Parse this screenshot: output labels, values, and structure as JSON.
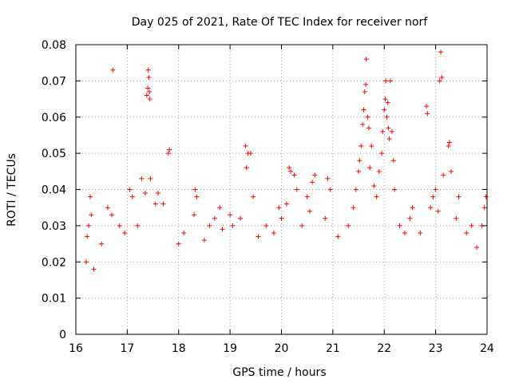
{
  "chart_data": {
    "type": "scatter",
    "title": "Day 025 of 2021, Rate Of TEC Index for receiver norf",
    "xlabel": "GPS time / hours",
    "ylabel": "ROTI / TECUs",
    "xlim": [
      16,
      24
    ],
    "ylim": [
      0,
      0.08
    ],
    "x_ticks": [
      16,
      17,
      18,
      19,
      20,
      21,
      22,
      23,
      24
    ],
    "y_ticks": [
      0,
      0.01,
      0.02,
      0.03,
      0.04,
      0.05,
      0.06,
      0.07,
      0.08
    ],
    "x_tick_labels": [
      "16",
      "17",
      "18",
      "19",
      "20",
      "21",
      "22",
      "23",
      "24"
    ],
    "y_tick_labels": [
      "0",
      "0.01",
      "0.02",
      "0.03",
      "0.04",
      "0.05",
      "0.06",
      "0.07",
      "0.08"
    ],
    "grid": true,
    "marker": "+",
    "color": "#ff0000",
    "series": [
      {
        "name": "ROTI",
        "points": [
          [
            16.2,
            0.02
          ],
          [
            16.22,
            0.027
          ],
          [
            16.25,
            0.03
          ],
          [
            16.28,
            0.038
          ],
          [
            16.3,
            0.033
          ],
          [
            16.35,
            0.018
          ],
          [
            16.5,
            0.025
          ],
          [
            16.62,
            0.035
          ],
          [
            16.7,
            0.033
          ],
          [
            16.72,
            0.073
          ],
          [
            16.85,
            0.03
          ],
          [
            16.95,
            0.028
          ],
          [
            17.05,
            0.04
          ],
          [
            17.1,
            0.038
          ],
          [
            17.2,
            0.03
          ],
          [
            17.28,
            0.043
          ],
          [
            17.35,
            0.039
          ],
          [
            17.38,
            0.066
          ],
          [
            17.4,
            0.068
          ],
          [
            17.41,
            0.073
          ],
          [
            17.42,
            0.071
          ],
          [
            17.43,
            0.067
          ],
          [
            17.44,
            0.065
          ],
          [
            17.45,
            0.043
          ],
          [
            17.55,
            0.036
          ],
          [
            17.6,
            0.039
          ],
          [
            17.7,
            0.036
          ],
          [
            17.8,
            0.05
          ],
          [
            17.82,
            0.051
          ],
          [
            18.0,
            0.025
          ],
          [
            18.1,
            0.028
          ],
          [
            18.3,
            0.033
          ],
          [
            18.32,
            0.04
          ],
          [
            18.35,
            0.038
          ],
          [
            18.5,
            0.026
          ],
          [
            18.6,
            0.03
          ],
          [
            18.7,
            0.032
          ],
          [
            18.8,
            0.035
          ],
          [
            18.85,
            0.029
          ],
          [
            19.0,
            0.033
          ],
          [
            19.05,
            0.03
          ],
          [
            19.2,
            0.032
          ],
          [
            19.3,
            0.052
          ],
          [
            19.32,
            0.046
          ],
          [
            19.35,
            0.05
          ],
          [
            19.4,
            0.05
          ],
          [
            19.45,
            0.038
          ],
          [
            19.55,
            0.027
          ],
          [
            19.7,
            0.03
          ],
          [
            19.85,
            0.028
          ],
          [
            19.95,
            0.035
          ],
          [
            20.0,
            0.032
          ],
          [
            20.1,
            0.036
          ],
          [
            20.15,
            0.046
          ],
          [
            20.18,
            0.045
          ],
          [
            20.25,
            0.044
          ],
          [
            20.3,
            0.04
          ],
          [
            20.4,
            0.03
          ],
          [
            20.5,
            0.038
          ],
          [
            20.55,
            0.034
          ],
          [
            20.6,
            0.042
          ],
          [
            20.65,
            0.044
          ],
          [
            20.85,
            0.032
          ],
          [
            20.9,
            0.043
          ],
          [
            20.95,
            0.04
          ],
          [
            21.1,
            0.027
          ],
          [
            21.3,
            0.03
          ],
          [
            21.4,
            0.035
          ],
          [
            21.45,
            0.04
          ],
          [
            21.5,
            0.045
          ],
          [
            21.52,
            0.048
          ],
          [
            21.55,
            0.052
          ],
          [
            21.58,
            0.058
          ],
          [
            21.6,
            0.062
          ],
          [
            21.62,
            0.067
          ],
          [
            21.64,
            0.069
          ],
          [
            21.65,
            0.076
          ],
          [
            21.68,
            0.06
          ],
          [
            21.7,
            0.057
          ],
          [
            21.72,
            0.046
          ],
          [
            21.75,
            0.052
          ],
          [
            21.8,
            0.041
          ],
          [
            21.85,
            0.038
          ],
          [
            21.9,
            0.045
          ],
          [
            21.95,
            0.05
          ],
          [
            21.97,
            0.056
          ],
          [
            22.0,
            0.062
          ],
          [
            22.02,
            0.065
          ],
          [
            22.03,
            0.07
          ],
          [
            22.05,
            0.06
          ],
          [
            22.07,
            0.064
          ],
          [
            22.08,
            0.057
          ],
          [
            22.1,
            0.054
          ],
          [
            22.12,
            0.07
          ],
          [
            22.15,
            0.056
          ],
          [
            22.18,
            0.048
          ],
          [
            22.2,
            0.04
          ],
          [
            22.3,
            0.03
          ],
          [
            22.4,
            0.028
          ],
          [
            22.5,
            0.032
          ],
          [
            22.55,
            0.035
          ],
          [
            22.7,
            0.028
          ],
          [
            22.82,
            0.063
          ],
          [
            22.84,
            0.061
          ],
          [
            22.9,
            0.035
          ],
          [
            22.95,
            0.038
          ],
          [
            23.0,
            0.04
          ],
          [
            23.05,
            0.034
          ],
          [
            23.08,
            0.07
          ],
          [
            23.1,
            0.078
          ],
          [
            23.12,
            0.071
          ],
          [
            23.15,
            0.044
          ],
          [
            23.25,
            0.052
          ],
          [
            23.27,
            0.053
          ],
          [
            23.3,
            0.045
          ],
          [
            23.4,
            0.032
          ],
          [
            23.45,
            0.038
          ],
          [
            23.6,
            0.028
          ],
          [
            23.7,
            0.03
          ],
          [
            23.8,
            0.024
          ],
          [
            23.9,
            0.03
          ],
          [
            23.95,
            0.035
          ],
          [
            23.98,
            0.038
          ]
        ]
      }
    ]
  }
}
